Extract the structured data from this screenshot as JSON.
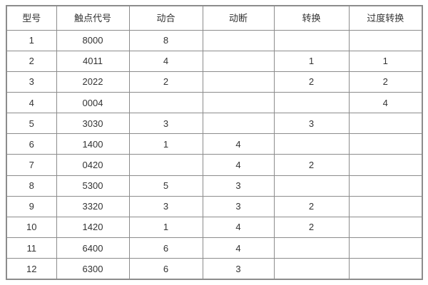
{
  "table": {
    "headers": [
      "型号",
      "触点代号",
      "动合",
      "动断",
      "转换",
      "过度转换"
    ],
    "rows": [
      [
        "1",
        "8000",
        "8",
        "",
        "",
        ""
      ],
      [
        "2",
        "4011",
        "4",
        "",
        "1",
        "1"
      ],
      [
        "3",
        "2022",
        "2",
        "",
        "2",
        "2"
      ],
      [
        "4",
        "0004",
        "",
        "",
        "",
        "4"
      ],
      [
        "5",
        "3030",
        "3",
        "",
        "3",
        ""
      ],
      [
        "6",
        "1400",
        "1",
        "4",
        "",
        ""
      ],
      [
        "7",
        "0420",
        "",
        "4",
        "2",
        ""
      ],
      [
        "8",
        "5300",
        "5",
        "3",
        "",
        ""
      ],
      [
        "9",
        "3320",
        "3",
        "3",
        "2",
        ""
      ],
      [
        "10",
        "1420",
        "1",
        "4",
        "2",
        ""
      ],
      [
        "11",
        "6400",
        "6",
        "4",
        "",
        ""
      ],
      [
        "12",
        "6300",
        "6",
        "3",
        "",
        ""
      ]
    ],
    "colors": {
      "border": "#8c8c8c",
      "text": "#333333",
      "background": "#ffffff"
    }
  }
}
